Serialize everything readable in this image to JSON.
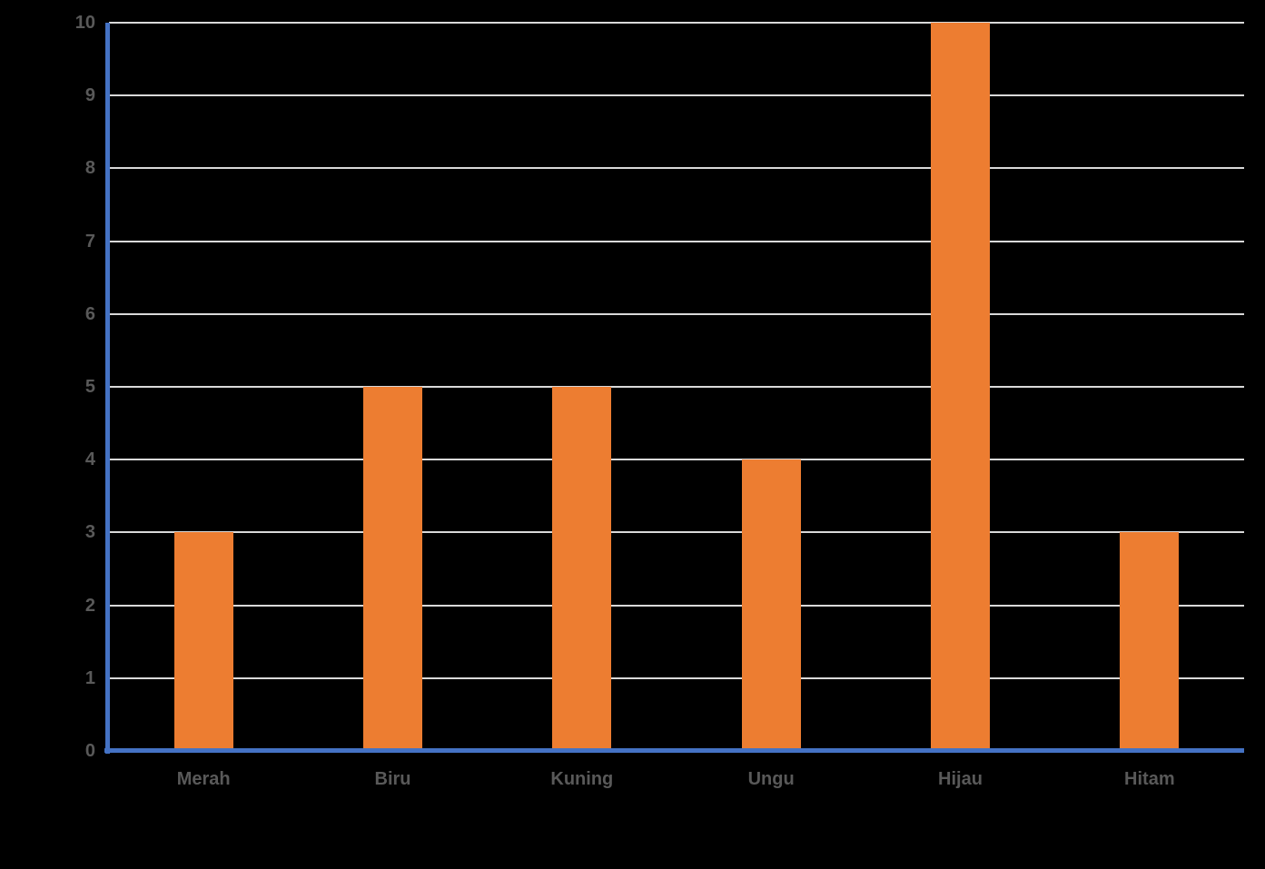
{
  "chart_data": {
    "type": "bar",
    "title": "",
    "xlabel": "",
    "ylabel": "",
    "categories": [
      "Merah",
      "Biru",
      "Kuning",
      "Ungu",
      "Hijau",
      "Hitam"
    ],
    "values": [
      3,
      5,
      5,
      4,
      10,
      3
    ],
    "ylim": [
      0,
      10
    ],
    "y_ticks": [
      0,
      1,
      2,
      3,
      4,
      5,
      6,
      7,
      8,
      9,
      10
    ],
    "grid": true,
    "legend": false,
    "colors": {
      "bar": "#ED7D31",
      "axis_line": "#4472C4",
      "gridline": "#D9D9D9",
      "tick_label": "#595959",
      "background": "#000000"
    }
  }
}
